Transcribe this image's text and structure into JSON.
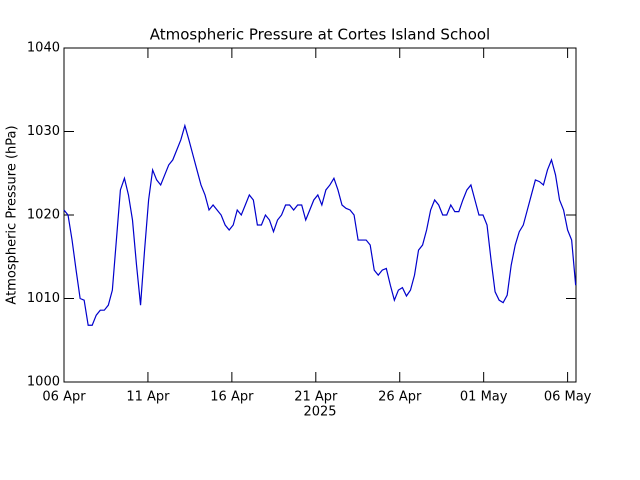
{
  "chart_data": {
    "type": "line",
    "title": "Atmospheric Pressure at Cortes Island School",
    "ylabel": "Atmospheric Pressure (hPa)",
    "xlabel": "2025",
    "xlim": [
      0,
      30.5
    ],
    "xticks": [
      {
        "value": 0,
        "label": "06 Apr"
      },
      {
        "value": 5,
        "label": "11 Apr"
      },
      {
        "value": 10,
        "label": "16 Apr"
      },
      {
        "value": 15,
        "label": "21 Apr"
      },
      {
        "value": 20,
        "label": "26 Apr"
      },
      {
        "value": 25,
        "label": "01 May"
      },
      {
        "value": 30,
        "label": "06 May"
      }
    ],
    "ylim": [
      1000,
      1040
    ],
    "yticks": [
      1000,
      1010,
      1020,
      1030,
      1040
    ],
    "grid": false,
    "x": [
      0,
      0.24,
      0.48,
      0.72,
      0.96,
      1.2,
      1.44,
      1.68,
      1.92,
      2.16,
      2.4,
      2.64,
      2.88,
      3.12,
      3.36,
      3.6,
      3.84,
      4.08,
      4.32,
      4.56,
      4.8,
      5.04,
      5.28,
      5.52,
      5.76,
      6,
      6.24,
      6.48,
      6.72,
      6.96,
      7.2,
      7.44,
      7.68,
      7.92,
      8.16,
      8.4,
      8.64,
      8.88,
      9.12,
      9.36,
      9.6,
      9.84,
      10.08,
      10.32,
      10.56,
      10.8,
      11.04,
      11.28,
      11.52,
      11.76,
      12,
      12.24,
      12.48,
      12.72,
      12.96,
      13.2,
      13.44,
      13.68,
      13.92,
      14.16,
      14.4,
      14.64,
      14.88,
      15.12,
      15.36,
      15.6,
      15.84,
      16.08,
      16.32,
      16.56,
      16.8,
      17.04,
      17.28,
      17.52,
      17.76,
      18,
      18.24,
      18.48,
      18.72,
      18.96,
      19.2,
      19.44,
      19.68,
      19.92,
      20.16,
      20.4,
      20.64,
      20.88,
      21.12,
      21.36,
      21.6,
      21.84,
      22.08,
      22.32,
      22.56,
      22.8,
      23.04,
      23.28,
      23.52,
      23.76,
      24,
      24.24,
      24.48,
      24.72,
      24.96,
      25.2,
      25.44,
      25.68,
      25.92,
      26.16,
      26.4,
      26.64,
      26.88,
      27.12,
      27.36,
      27.6,
      27.84,
      28.08,
      28.32,
      28.56,
      28.8,
      29.04,
      29.28,
      29.52,
      29.76,
      30,
      30.24,
      30.48
    ],
    "series": [
      {
        "color": "#0000cc",
        "values": [
          1020.6,
          1020,
          1017,
          1013.4,
          1010,
          1009.8,
          1006.8,
          1006.8,
          1008,
          1008.6,
          1008.6,
          1009.2,
          1011,
          1017,
          1023,
          1024.4,
          1022.4,
          1019.4,
          1014,
          1009.2,
          1015.8,
          1021.8,
          1025.4,
          1024.2,
          1023.6,
          1024.8,
          1026,
          1026.6,
          1027.8,
          1029,
          1030.7,
          1029,
          1027.2,
          1025.4,
          1023.6,
          1022.4,
          1020.6,
          1021.2,
          1020.6,
          1020,
          1018.8,
          1018.2,
          1018.8,
          1020.6,
          1020,
          1021.2,
          1022.4,
          1021.8,
          1018.8,
          1018.8,
          1020,
          1019.4,
          1018,
          1019.4,
          1020,
          1021.2,
          1021.2,
          1020.6,
          1021.2,
          1021.2,
          1019.4,
          1020.6,
          1021.8,
          1022.4,
          1021.2,
          1023,
          1023.6,
          1024.4,
          1023,
          1021.2,
          1020.8,
          1020.6,
          1020,
          1017,
          1017,
          1017,
          1016.4,
          1013.4,
          1012.8,
          1013.4,
          1013.6,
          1011.6,
          1009.8,
          1011,
          1011.3,
          1010.3,
          1011,
          1012.8,
          1015.8,
          1016.4,
          1018.2,
          1020.6,
          1021.8,
          1021.2,
          1020,
          1020,
          1021.2,
          1020.4,
          1020.4,
          1021.8,
          1023,
          1023.6,
          1021.8,
          1020,
          1020,
          1018.8,
          1014.6,
          1010.8,
          1009.8,
          1009.5,
          1010.4,
          1014,
          1016.4,
          1018,
          1018.8,
          1020.6,
          1022.4,
          1024.2,
          1024,
          1023.6,
          1025.4,
          1026.6,
          1024.8,
          1021.8,
          1020.6,
          1018.2,
          1017,
          1011.6
        ]
      }
    ]
  }
}
